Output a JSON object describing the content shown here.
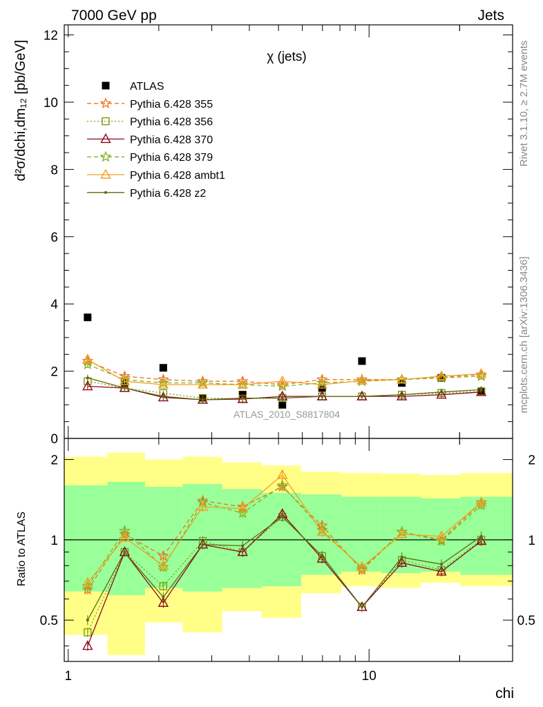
{
  "header": {
    "left": "7000 GeV pp",
    "right": "Jets"
  },
  "side_labels": {
    "rivet": "Rivet 3.1.10, ≥ 2.7M events",
    "mcplots": "mcplots.cern.ch [arXiv:1306.3436]"
  },
  "chart_data": [
    {
      "type": "scatter",
      "panel": "main",
      "title": "χ (jets)",
      "ylabel": "d²σ/dchi,dm₁₂ [pb/GeV]",
      "xlabel": "",
      "x_scale": "log",
      "xlim": [
        0.97,
        30
      ],
      "ylim": [
        0,
        12.3
      ],
      "yticks": [
        0,
        2,
        4,
        6,
        8,
        10,
        12
      ],
      "watermark": "ATLAS_2010_S8817804",
      "legend_position": "top-left",
      "x": [
        1.16,
        1.54,
        2.07,
        2.8,
        3.8,
        5.15,
        6.98,
        9.47,
        12.85,
        17.4,
        23.6
      ],
      "series": [
        {
          "name": "ATLAS",
          "color": "#000000",
          "marker": "filled-square",
          "line": "none",
          "values": [
            3.6,
            1.65,
            2.1,
            1.2,
            1.3,
            1.0,
            1.5,
            2.3,
            1.65,
            1.8,
            1.4
          ]
        },
        {
          "name": "Pythia 6.428 355",
          "color": "#f07020",
          "marker": "star",
          "line": "dashed",
          "values": [
            2.3,
            1.85,
            1.75,
            1.7,
            1.7,
            1.6,
            1.75,
            1.75,
            1.75,
            1.82,
            1.9
          ]
        },
        {
          "name": "Pythia 6.428 356",
          "color": "#7a9a10",
          "marker": "open-square",
          "line": "dotted",
          "values": [
            1.7,
            1.5,
            1.35,
            1.2,
            1.18,
            1.2,
            1.25,
            1.25,
            1.3,
            1.35,
            1.4
          ]
        },
        {
          "name": "Pythia 6.428 370",
          "color": "#8b0a1a",
          "marker": "open-triangle",
          "line": "solid",
          "values": [
            1.55,
            1.5,
            1.22,
            1.15,
            1.17,
            1.25,
            1.25,
            1.25,
            1.25,
            1.3,
            1.38
          ]
        },
        {
          "name": "Pythia 6.428 379",
          "color": "#80b020",
          "marker": "star",
          "line": "dashed",
          "values": [
            2.2,
            1.75,
            1.65,
            1.65,
            1.6,
            1.55,
            1.65,
            1.7,
            1.75,
            1.8,
            1.85
          ]
        },
        {
          "name": "Pythia 6.428 ambt1",
          "color": "#f0a020",
          "marker": "open-triangle",
          "line": "solid",
          "values": [
            2.35,
            1.7,
            1.6,
            1.6,
            1.6,
            1.7,
            1.6,
            1.72,
            1.75,
            1.85,
            1.92
          ]
        },
        {
          "name": "Pythia 6.428 z2",
          "color": "#5a6a10",
          "marker": "dot",
          "line": "solid",
          "values": [
            1.8,
            1.5,
            1.25,
            1.15,
            1.2,
            1.2,
            1.25,
            1.25,
            1.3,
            1.38,
            1.45
          ]
        }
      ]
    },
    {
      "type": "line",
      "panel": "ratio",
      "ylabel": "Ratio to ATLAS",
      "xlabel": "chi",
      "x_scale": "log",
      "y_scale": "log",
      "xlim": [
        0.97,
        30
      ],
      "ylim": [
        0.35,
        2.4
      ],
      "xticks": [
        1,
        10
      ],
      "yticks": [
        0.5,
        1,
        2
      ],
      "reference_line": 1,
      "bands": {
        "edges": [
          0.97,
          1.35,
          1.8,
          2.4,
          3.25,
          4.4,
          5.95,
          8.1,
          10.95,
          14.85,
          20.1,
          30
        ],
        "yellow_high": [
          2.05,
          2.12,
          2.0,
          2.05,
          1.95,
          1.9,
          1.8,
          1.78,
          1.77,
          1.75,
          1.78
        ],
        "yellow_low": [
          0.44,
          0.37,
          0.49,
          0.45,
          0.54,
          0.51,
          0.63,
          0.67,
          0.66,
          0.69,
          0.67
        ],
        "green_high": [
          1.6,
          1.65,
          1.58,
          1.62,
          1.55,
          1.5,
          1.48,
          1.45,
          1.45,
          1.43,
          1.45
        ],
        "green_low": [
          0.64,
          0.62,
          0.66,
          0.64,
          0.66,
          0.67,
          0.74,
          0.76,
          0.75,
          0.76,
          0.74
        ],
        "yellow_color": "#ffff88",
        "green_color": "#99ff99"
      },
      "x": [
        1.16,
        1.54,
        2.07,
        2.8,
        3.8,
        5.15,
        6.98,
        9.47,
        12.85,
        17.4,
        23.6
      ],
      "series": [
        {
          "name": "Pythia 6.428 355",
          "values": [
            0.65,
            1.05,
            0.87,
            1.4,
            1.33,
            1.58,
            1.13,
            0.77,
            1.07,
            1.0,
            1.38
          ]
        },
        {
          "name": "Pythia 6.428 356",
          "values": [
            0.45,
            0.9,
            0.67,
            0.99,
            0.9,
            1.22,
            0.87,
            0.56,
            0.84,
            0.77,
            1.0
          ]
        },
        {
          "name": "Pythia 6.428 370",
          "values": [
            0.4,
            0.9,
            0.58,
            0.96,
            0.9,
            1.25,
            0.85,
            0.56,
            0.82,
            0.76,
            0.99
          ]
        },
        {
          "name": "Pythia 6.428 379",
          "values": [
            0.67,
            1.08,
            0.79,
            1.38,
            1.26,
            1.6,
            1.09,
            0.78,
            1.07,
            0.99,
            1.35
          ]
        },
        {
          "name": "Pythia 6.428 ambt1",
          "values": [
            0.69,
            1.02,
            0.8,
            1.33,
            1.31,
            1.75,
            1.07,
            0.79,
            1.05,
            1.03,
            1.38
          ]
        },
        {
          "name": "Pythia 6.428 z2",
          "values": [
            0.5,
            0.9,
            0.61,
            0.96,
            0.95,
            1.22,
            0.87,
            0.56,
            0.86,
            0.81,
            1.03
          ]
        }
      ]
    }
  ]
}
